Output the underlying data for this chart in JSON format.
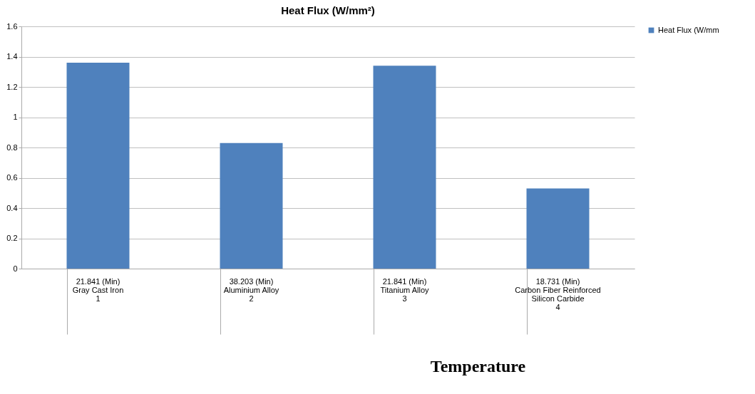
{
  "chart_data": {
    "type": "bar",
    "title": "Heat Flux (W/mm²)",
    "xlabel": "Temperature",
    "categories": [
      "21.841 (Min)\n\nGray Cast Iron\n\n\n1",
      "38.203 (Min)\n\nAluminium Alloy\n\n\n2",
      "21.841 (Min)\n\nTitanium Alloy\n\n\n3",
      "18.731 (Min)\n\nCarbon Fiber Reinforced\nSilicon Carbide\n\n4"
    ],
    "series": [
      {
        "name": "Heat Flux (W/mm",
        "color": "#4f81bd",
        "values": [
          1.36,
          0.83,
          1.34,
          0.53
        ]
      }
    ],
    "ylim": [
      0,
      1.6
    ],
    "yticks": [
      0,
      0.2,
      0.4,
      0.6,
      0.8,
      1,
      1.2,
      1.4,
      1.6
    ],
    "grid": "y",
    "legend": "right"
  }
}
